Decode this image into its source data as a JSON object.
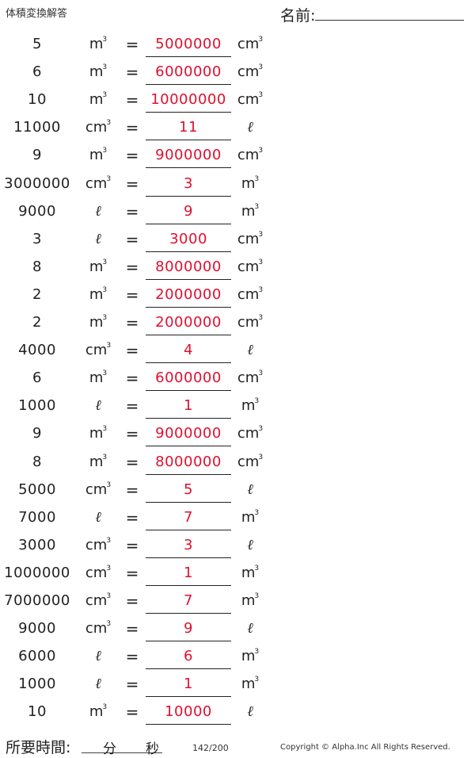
{
  "header": {
    "title": "体積変換解答",
    "name_label": "名前:"
  },
  "problems": [
    {
      "lhs": "5",
      "left_unit": "m3",
      "right_unit": "cm3",
      "answer": "5000000"
    },
    {
      "lhs": "6",
      "left_unit": "m3",
      "right_unit": "cm3",
      "answer": "6000000"
    },
    {
      "lhs": "10",
      "left_unit": "m3",
      "right_unit": "cm3",
      "answer": "10000000"
    },
    {
      "lhs": "11000",
      "left_unit": "cm3",
      "right_unit": "l",
      "answer": "11"
    },
    {
      "lhs": "9",
      "left_unit": "m3",
      "right_unit": "cm3",
      "answer": "9000000"
    },
    {
      "lhs": "3000000",
      "left_unit": "cm3",
      "right_unit": "m3",
      "answer": "3"
    },
    {
      "lhs": "9000",
      "left_unit": "l",
      "right_unit": "m3",
      "answer": "9"
    },
    {
      "lhs": "3",
      "left_unit": "l",
      "right_unit": "cm3",
      "answer": "3000"
    },
    {
      "lhs": "8",
      "left_unit": "m3",
      "right_unit": "cm3",
      "answer": "8000000"
    },
    {
      "lhs": "2",
      "left_unit": "m3",
      "right_unit": "cm3",
      "answer": "2000000"
    },
    {
      "lhs": "2",
      "left_unit": "m3",
      "right_unit": "cm3",
      "answer": "2000000"
    },
    {
      "lhs": "4000",
      "left_unit": "cm3",
      "right_unit": "l",
      "answer": "4"
    },
    {
      "lhs": "6",
      "left_unit": "m3",
      "right_unit": "cm3",
      "answer": "6000000"
    },
    {
      "lhs": "1000",
      "left_unit": "l",
      "right_unit": "m3",
      "answer": "1"
    },
    {
      "lhs": "9",
      "left_unit": "m3",
      "right_unit": "cm3",
      "answer": "9000000"
    },
    {
      "lhs": "8",
      "left_unit": "m3",
      "right_unit": "cm3",
      "answer": "8000000"
    },
    {
      "lhs": "5000",
      "left_unit": "cm3",
      "right_unit": "l",
      "answer": "5"
    },
    {
      "lhs": "7000",
      "left_unit": "l",
      "right_unit": "m3",
      "answer": "7"
    },
    {
      "lhs": "3000",
      "left_unit": "cm3",
      "right_unit": "l",
      "answer": "3"
    },
    {
      "lhs": "1000000",
      "left_unit": "cm3",
      "right_unit": "m3",
      "answer": "1"
    },
    {
      "lhs": "7000000",
      "left_unit": "cm3",
      "right_unit": "m3",
      "answer": "7"
    },
    {
      "lhs": "9000",
      "left_unit": "cm3",
      "right_unit": "l",
      "answer": "9"
    },
    {
      "lhs": "6000",
      "left_unit": "l",
      "right_unit": "m3",
      "answer": "6"
    },
    {
      "lhs": "1000",
      "left_unit": "l",
      "right_unit": "m3",
      "answer": "1"
    },
    {
      "lhs": "10",
      "left_unit": "m3",
      "right_unit": "l",
      "answer": "10000"
    }
  ],
  "equals_sign": "=",
  "footer": {
    "time_label": "所要時間:",
    "minutes_label": "分",
    "seconds_label": "秒",
    "page": "142/200",
    "copyright": "Copyright © Alpha.Inc All Rights Reserved."
  },
  "colors": {
    "answer": "#e0102f",
    "text": "#222222"
  }
}
